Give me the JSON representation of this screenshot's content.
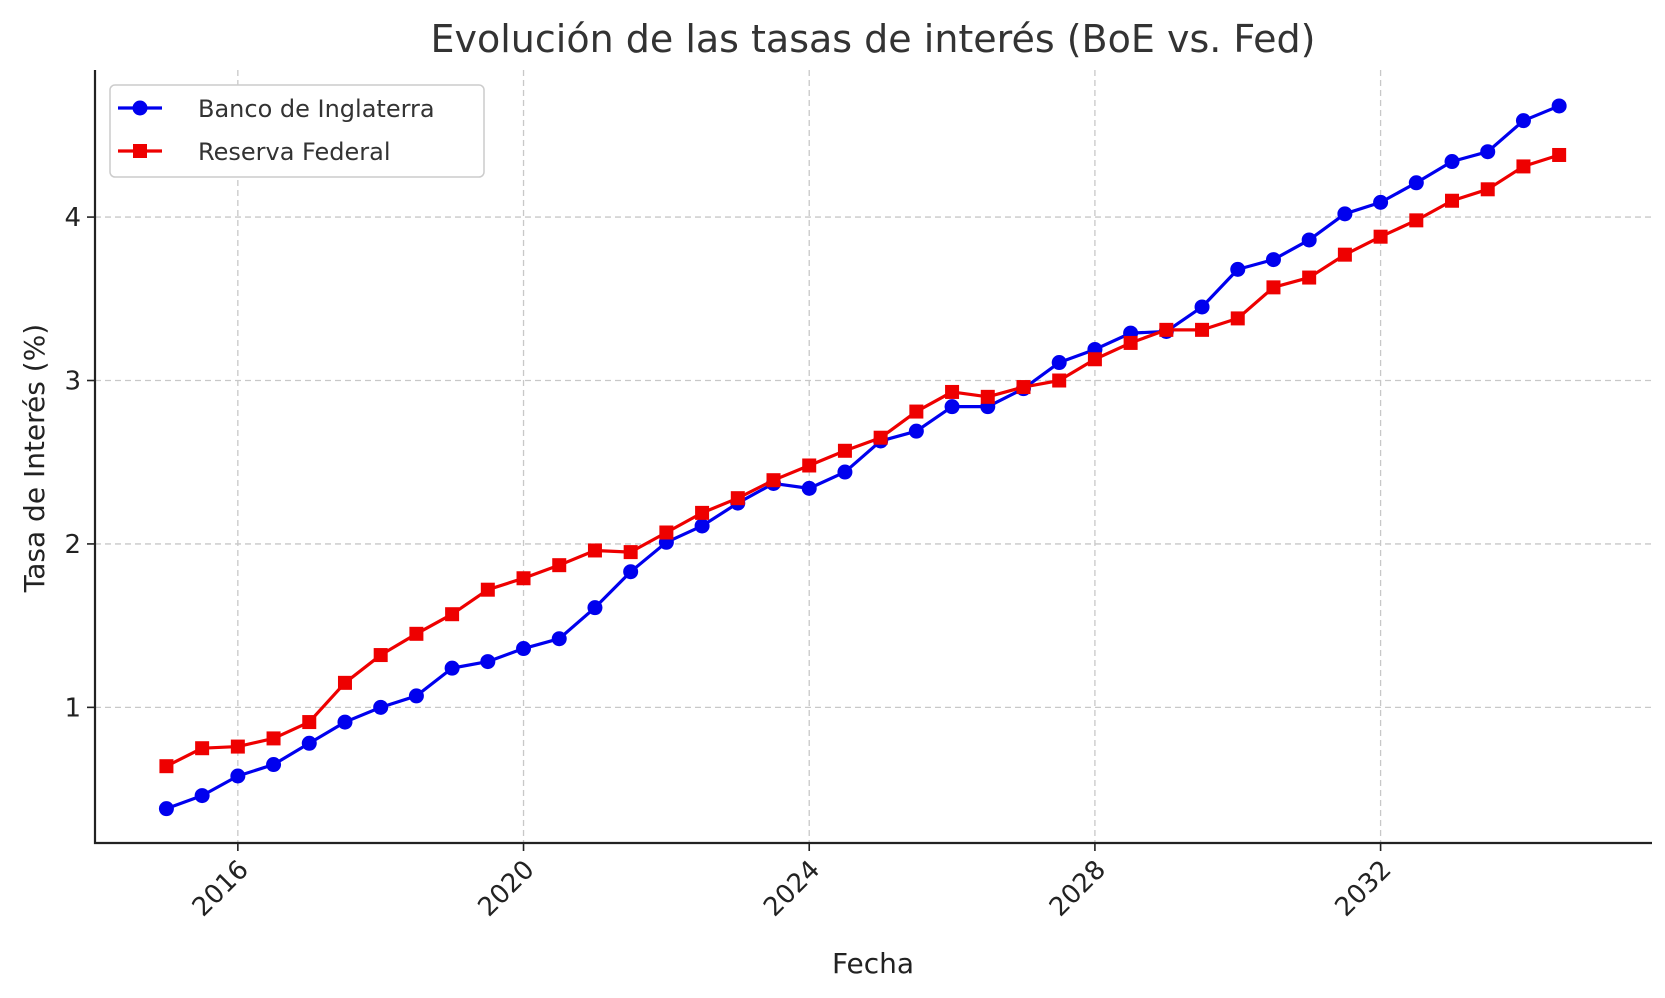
{
  "chart_data": {
    "type": "line",
    "title": "Evolución de las tasas de interés (BoE vs. Fed)",
    "xlabel": "Fecha",
    "ylabel": "Tasa de Interés (%)",
    "xlim": [
      2014.0,
      2035.8
    ],
    "ylim": [
      0.17,
      4.9
    ],
    "x_ticks": [
      2016,
      2020,
      2024,
      2028,
      2032
    ],
    "y_ticks": [
      1,
      2,
      3,
      4
    ],
    "grid": true,
    "legend_position": "upper-left",
    "x": [
      2015,
      2015.5,
      2016,
      2016.5,
      2017,
      2017.5,
      2018,
      2018.5,
      2019,
      2019.5,
      2020,
      2020.5,
      2021,
      2021.5,
      2022,
      2022.5,
      2023,
      2023.5,
      2024,
      2024.5,
      2025,
      2025.5,
      2026,
      2026.5,
      2027,
      2027.5,
      2028,
      2028.5,
      2029,
      2029.5,
      2030,
      2030.5,
      2031,
      2031.5,
      2032,
      2032.5,
      2033,
      2033.5,
      2034,
      2034.5
    ],
    "series": [
      {
        "name": "Banco de Inglaterra",
        "color": "#0000ee",
        "marker": "circle",
        "values": [
          0.38,
          0.46,
          0.58,
          0.65,
          0.78,
          0.91,
          1.0,
          1.07,
          1.24,
          1.28,
          1.36,
          1.42,
          1.61,
          1.83,
          2.01,
          2.11,
          2.25,
          2.37,
          2.34,
          2.44,
          2.63,
          2.69,
          2.84,
          2.84,
          2.95,
          3.11,
          3.19,
          3.29,
          3.3,
          3.45,
          3.68,
          3.74,
          3.86,
          4.02,
          4.09,
          4.21,
          4.34,
          4.4,
          4.59,
          4.68
        ]
      },
      {
        "name": "Reserva Federal",
        "color": "#ee0000",
        "marker": "square",
        "values": [
          0.64,
          0.75,
          0.76,
          0.81,
          0.91,
          1.15,
          1.32,
          1.45,
          1.57,
          1.72,
          1.79,
          1.87,
          1.96,
          1.95,
          2.07,
          2.19,
          2.28,
          2.39,
          2.48,
          2.57,
          2.65,
          2.81,
          2.93,
          2.9,
          2.96,
          3.0,
          3.13,
          3.23,
          3.31,
          3.31,
          3.38,
          3.57,
          3.63,
          3.77,
          3.88,
          3.98,
          4.1,
          4.17,
          4.31,
          4.38
        ]
      }
    ]
  }
}
